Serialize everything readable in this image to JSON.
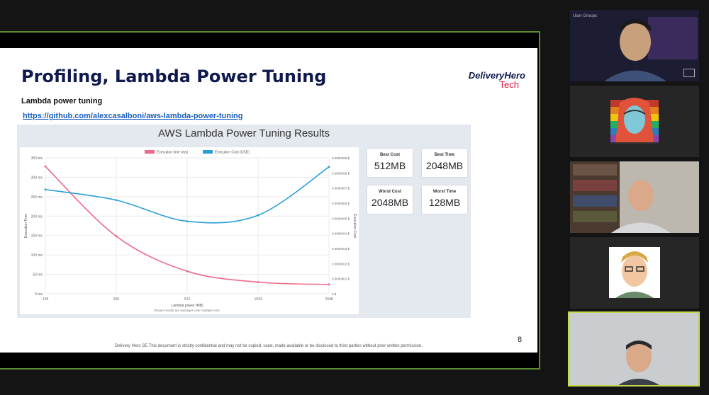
{
  "slide": {
    "title": "Profiling, Lambda Power Tuning",
    "logo_line1": "DeliveryHero",
    "logo_line2": "Tech",
    "subtitle": "Lambda power tuning",
    "link": "https://github.com/alexcasalboni/aws-lambda-power-tuning",
    "page_number": "8",
    "footer": "Delivery Hero SE  This document is strictly confidential and may not be copied, used, made available or be disclosed to third parties without prior written permission."
  },
  "results": {
    "title": "AWS Lambda Power Tuning Results",
    "metrics": [
      {
        "label": "Best Cost",
        "value": "512MB"
      },
      {
        "label": "Best Time",
        "value": "2048MB"
      },
      {
        "label": "Worst Cost",
        "value": "2048MB"
      },
      {
        "label": "Worst Time",
        "value": "128MB"
      }
    ]
  },
  "chart_data": {
    "type": "line",
    "x": [
      128,
      256,
      512,
      1024,
      2048
    ],
    "xticks": [
      "128",
      "256",
      "512",
      "1024",
      "2048"
    ],
    "xlabel": "Lambda power (MB)",
    "note": "Shown results are averages over multiple runs.",
    "y_left_label": "Execution Time",
    "y_right_label": "Execution Cost",
    "y_left_ticks": [
      "0 ms",
      "50 ms",
      "100 ms",
      "150 ms",
      "200 ms",
      "250 ms",
      "300 ms",
      "350 ms"
    ],
    "y_right_ticks": [
      "0 $",
      "0.0000001 $",
      "0.0000002 $",
      "0.0000003 $",
      "0.0000004 $",
      "0.0000005 $",
      "0.0000006 $",
      "0.0000007 $",
      "0.0000008 $",
      "0.0000009 $"
    ],
    "ylim_left": [
      0,
      350
    ],
    "ylim_right": [
      0,
      9e-07
    ],
    "series": [
      {
        "name": "Execution time (ms)",
        "axis": "left",
        "color": "#ee6a8a",
        "values": [
          328,
          148,
          58,
          30,
          24
        ]
      },
      {
        "name": "Execution Cost (USD)",
        "axis": "right",
        "color": "#2a9fd6",
        "values": [
          6.9e-07,
          6.2e-07,
          4.8e-07,
          5.2e-07,
          8.4e-07
        ]
      }
    ]
  },
  "participants": {
    "group_label": "User Groups"
  }
}
